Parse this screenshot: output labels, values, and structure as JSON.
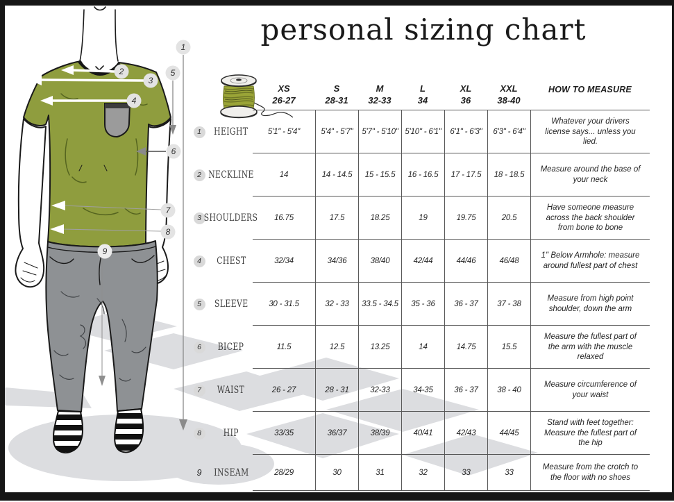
{
  "title": "personal sizing chart",
  "colors": {
    "shirt": "#8f9d3e",
    "pocket": "#9b9b9b",
    "jeans": "#8e9194",
    "thread": "#9aa437",
    "shadow": "#dcdde0",
    "badge": "#d9d9d9",
    "frame": "#161616",
    "line": "#5a5a5a"
  },
  "icons": {
    "header_icon": "thread-spool-icon"
  },
  "figure": {
    "callouts": [
      "1",
      "2",
      "3",
      "4",
      "5",
      "6",
      "7",
      "8",
      "9"
    ]
  },
  "table": {
    "measure_header": "HOW TO MEASURE",
    "size_headers": [
      {
        "label": "XS",
        "range": "26-27"
      },
      {
        "label": "S",
        "range": "28-31"
      },
      {
        "label": "M",
        "range": "32-33"
      },
      {
        "label": "L",
        "range": "34"
      },
      {
        "label": "XL",
        "range": "36"
      },
      {
        "label": "XXL",
        "range": "38-40"
      }
    ],
    "rows": [
      {
        "num": "1",
        "circled": true,
        "label": "HEIGHT",
        "values": [
          "5'1\" - 5'4\"",
          "5'4\" - 5'7\"",
          "5'7\" - 5'10\"",
          "5'10\" - 6'1\"",
          "6'1\" - 6'3\"",
          "6'3\" - 6'4\""
        ],
        "how": "Whatever your drivers license says... unless you lied."
      },
      {
        "num": "2",
        "circled": true,
        "label": "NECKLINE",
        "values": [
          "14",
          "14 - 14.5",
          "15 - 15.5",
          "16 - 16.5",
          "17 - 17.5",
          "18 - 18.5"
        ],
        "how": "Measure around the base of your neck"
      },
      {
        "num": "3",
        "circled": true,
        "label": "SHOULDERS",
        "values": [
          "16.75",
          "17.5",
          "18.25",
          "19",
          "19.75",
          "20.5"
        ],
        "how": "Have someone measure across the back shoulder from bone to bone"
      },
      {
        "num": "4",
        "circled": true,
        "label": "CHEST",
        "values": [
          "32/34",
          "34/36",
          "38/40",
          "42/44",
          "44/46",
          "46/48"
        ],
        "how": "1\" Below Armhole: measure around fullest part of chest"
      },
      {
        "num": "5",
        "circled": true,
        "label": "SLEEVE",
        "values": [
          "30 - 31.5",
          "32 - 33",
          "33.5 - 34.5",
          "35 - 36",
          "36 - 37",
          "37 - 38"
        ],
        "how": "Measure from high point shoulder, down the arm"
      },
      {
        "num": "6",
        "circled": true,
        "label": "BICEP",
        "values": [
          "11.5",
          "12.5",
          "13.25",
          "14",
          "14.75",
          "15.5"
        ],
        "how": "Measure the fullest part of the arm with the muscle relaxed"
      },
      {
        "num": "7",
        "circled": true,
        "label": "WAIST",
        "values": [
          "26 - 27",
          "28 - 31",
          "32-33",
          "34-35",
          "36 - 37",
          "38 - 40"
        ],
        "how": "Measure circumference of your waist"
      },
      {
        "num": "8",
        "circled": true,
        "label": "HIP",
        "values": [
          "33/35",
          "36/37",
          "38/39",
          "40/41",
          "42/43",
          "44/45"
        ],
        "how": "Stand with feet together: Measure the fullest part of the hip"
      },
      {
        "num": "9",
        "circled": false,
        "label": "INSEAM",
        "values": [
          "28/29",
          "30",
          "31",
          "32",
          "33",
          "33"
        ],
        "how": "Measure from the crotch to the floor with no shoes"
      }
    ]
  }
}
